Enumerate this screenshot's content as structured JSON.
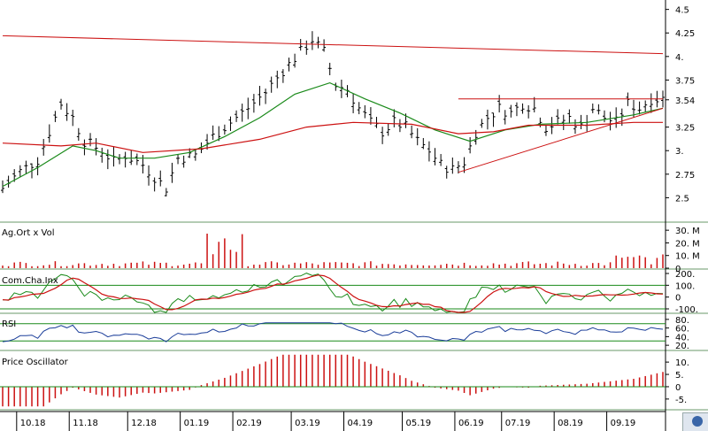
{
  "chart_data": [
    {
      "type": "ohlc",
      "title": "",
      "ylim": [
        2.25,
        4.6
      ],
      "y_ticks": [
        "4.5",
        "4.25",
        "4.",
        "3.75",
        "3.54",
        "3.25",
        "3.",
        "2.75",
        "2.5"
      ],
      "y_tick_values": [
        4.5,
        4.25,
        4.0,
        3.75,
        3.54,
        3.25,
        3.0,
        2.75,
        2.5
      ],
      "last_price": 3.54,
      "month_labels": [
        "10.18",
        "11.18",
        "12.18",
        "01.19",
        "02.19",
        "03.19",
        "04.19",
        "05.19",
        "06.19",
        "07.19",
        "08.19",
        "09.19"
      ],
      "close_path": [
        [
          0,
          2.6
        ],
        [
          3,
          2.78
        ],
        [
          6,
          2.9
        ],
        [
          8,
          3.2
        ],
        [
          10,
          3.5
        ],
        [
          12,
          3.35
        ],
        [
          14,
          3.1
        ],
        [
          17,
          3.0
        ],
        [
          19,
          2.88
        ],
        [
          21,
          2.95
        ],
        [
          24,
          2.85
        ],
        [
          26,
          2.72
        ],
        [
          28,
          2.6
        ],
        [
          30,
          2.92
        ],
        [
          33,
          2.95
        ],
        [
          36,
          3.15
        ],
        [
          39,
          3.3
        ],
        [
          42,
          3.45
        ],
        [
          45,
          3.62
        ],
        [
          48,
          3.85
        ],
        [
          51,
          4.05
        ],
        [
          53,
          4.18
        ],
        [
          55,
          4.05
        ],
        [
          57,
          3.7
        ],
        [
          59,
          3.65
        ],
        [
          61,
          3.45
        ],
        [
          63,
          3.3
        ],
        [
          65,
          3.2
        ],
        [
          67,
          3.3
        ],
        [
          69,
          3.25
        ],
        [
          71,
          3.1
        ],
        [
          73,
          3.0
        ],
        [
          75,
          2.85
        ],
        [
          77,
          2.8
        ],
        [
          79,
          2.88
        ],
        [
          81,
          3.2
        ],
        [
          83,
          3.35
        ],
        [
          85,
          3.45
        ],
        [
          87,
          3.4
        ],
        [
          89,
          3.5
        ],
        [
          91,
          3.45
        ],
        [
          93,
          3.25
        ],
        [
          95,
          3.3
        ],
        [
          97,
          3.35
        ],
        [
          99,
          3.25
        ],
        [
          101,
          3.45
        ],
        [
          103,
          3.35
        ],
        [
          105,
          3.3
        ],
        [
          107,
          3.5
        ],
        [
          109,
          3.45
        ],
        [
          111,
          3.55
        ]
      ],
      "series": [
        {
          "name": "",
          "color": "#1a8a1a",
          "values": [
            [
              0,
              2.62
            ],
            [
              6,
              2.82
            ],
            [
              12,
              3.05
            ],
            [
              16,
              3.0
            ],
            [
              20,
              2.92
            ],
            [
              26,
              2.92
            ],
            [
              32,
              2.98
            ],
            [
              38,
              3.15
            ],
            [
              44,
              3.35
            ],
            [
              50,
              3.6
            ],
            [
              56,
              3.72
            ],
            [
              62,
              3.55
            ],
            [
              68,
              3.4
            ],
            [
              74,
              3.22
            ],
            [
              80,
              3.1
            ],
            [
              86,
              3.22
            ],
            [
              92,
              3.28
            ],
            [
              100,
              3.3
            ],
            [
              108,
              3.38
            ],
            [
              113,
              3.45
            ]
          ]
        },
        {
          "name": "",
          "color": "#cc1111",
          "values": [
            [
              0,
              3.08
            ],
            [
              10,
              3.05
            ],
            [
              16,
              3.08
            ],
            [
              24,
              2.98
            ],
            [
              34,
              3.02
            ],
            [
              44,
              3.12
            ],
            [
              52,
              3.25
            ],
            [
              60,
              3.3
            ],
            [
              70,
              3.28
            ],
            [
              78,
              3.18
            ],
            [
              84,
              3.2
            ],
            [
              90,
              3.27
            ],
            [
              100,
              3.27
            ],
            [
              108,
              3.3
            ],
            [
              113,
              3.3
            ]
          ]
        }
      ],
      "trendlines": [
        {
          "from": [
            0,
            4.22
          ],
          "to": [
            113,
            4.03
          ],
          "color": "#cc1111"
        },
        {
          "from": [
            78,
            3.55
          ],
          "to": [
            113,
            3.55
          ],
          "color": "#cc1111"
        },
        {
          "from": [
            78,
            2.77
          ],
          "to": [
            113,
            3.45
          ],
          "color": "#cc1111"
        }
      ]
    },
    {
      "type": "bar",
      "title": "Ag.Ort x Vol",
      "y_ticks": [
        "30. M",
        "20. M",
        "10. M",
        "0"
      ],
      "y_tick_values": [
        30,
        20,
        10,
        0
      ],
      "ylim": [
        0,
        35
      ]
    },
    {
      "type": "line",
      "title": "Com.Cha.Inx",
      "y_ticks": [
        "200.",
        "100.",
        "0",
        "-100."
      ],
      "y_tick_values": [
        200,
        100,
        0,
        -100
      ],
      "ylim": [
        -130,
        230
      ],
      "reference_lines": [
        100,
        -100
      ],
      "series": [
        {
          "name": "",
          "color": "#1a8a1a"
        },
        {
          "name": "",
          "color": "#cc1111"
        }
      ]
    },
    {
      "type": "line",
      "title": "RSI",
      "y_ticks": [
        "80.",
        "60.",
        "40.",
        "20."
      ],
      "y_tick_values": [
        80,
        60,
        40,
        20
      ],
      "ylim": [
        10,
        90
      ],
      "reference_lines": [
        70,
        30
      ],
      "series": [
        {
          "name": "",
          "color": "#1a3d99"
        }
      ]
    },
    {
      "type": "bar",
      "title": "Price Oscillator",
      "y_ticks": [
        "10.",
        "5.",
        "0",
        "-5."
      ],
      "y_tick_values": [
        10,
        5,
        0,
        -5
      ],
      "ylim": [
        -9,
        14
      ]
    }
  ]
}
